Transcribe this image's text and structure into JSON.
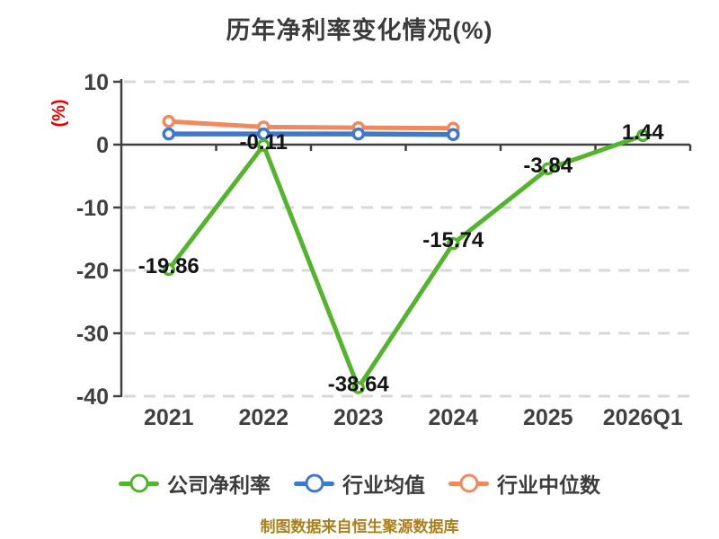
{
  "title": "历年净利率变化情况(%)",
  "footer": "制图数据来自恒生聚源数据库",
  "colors": {
    "company_green": "#55b42d",
    "industry_blue": "#3e78d1",
    "median_orange": "#f08a5e",
    "axis_gray": "#404040",
    "grid_gray": "#d8d8d8",
    "percent_red": "#e60000",
    "value_label_black": "#141414",
    "footer_gold": "#ab7f1b"
  },
  "legend": [
    {
      "label": "公司净利率"
    },
    {
      "label": "行业均值"
    },
    {
      "label": "行业中位数"
    }
  ],
  "chart_data": {
    "type": "line",
    "title": "历年净利率变化情况(%)",
    "ylabel": "(%)",
    "xlabel": "",
    "ylim": [
      -40,
      10
    ],
    "yticks": [
      10,
      0,
      -10,
      -20,
      -30,
      -40
    ],
    "grid": true,
    "legend_position": "bottom",
    "categories": [
      "2021",
      "2022",
      "2023",
      "2024",
      "2025",
      "2026Q1"
    ],
    "series": [
      {
        "name": "公司净利率",
        "color": "#55b42d",
        "values": [
          -19.86,
          -0.11,
          -38.64,
          -15.74,
          -3.84,
          1.44
        ],
        "value_labels": [
          "-19.86",
          "-0.11",
          "-38.64",
          "-15.74",
          "-3.84",
          "1.44"
        ]
      },
      {
        "name": "行业均值",
        "color": "#3e78d1",
        "values": [
          1.7,
          1.7,
          1.7,
          1.6,
          null,
          null
        ]
      },
      {
        "name": "行业中位数",
        "color": "#f08a5e",
        "values": [
          3.7,
          2.8,
          2.7,
          2.6,
          null,
          null
        ]
      }
    ]
  }
}
